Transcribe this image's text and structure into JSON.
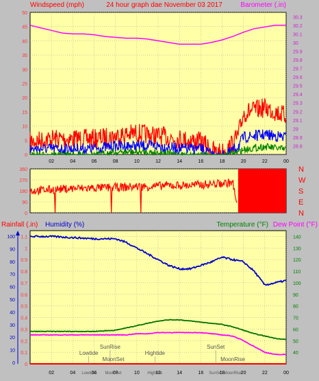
{
  "chart_data": [
    {
      "type": "line",
      "title": "24 hour graph dae   November 03 2017",
      "ylabel_left": "Windspeed (mph)",
      "ylabel_right": "Barometer (.in)",
      "x_ticks": [
        "02",
        "04",
        "06",
        "08",
        "10",
        "12",
        "14",
        "16",
        "18",
        "20",
        "22",
        "00"
      ],
      "xlim": [
        0,
        24
      ],
      "ylim_left": [
        0,
        50
      ],
      "ylim_right": [
        28.7,
        30.35
      ],
      "left_ticks": [
        "0",
        "5",
        "10",
        "15",
        "20",
        "25",
        "30",
        "35",
        "40",
        "45",
        "50"
      ],
      "right_ticks": [
        "28.8",
        "28.9",
        "29",
        "29.1",
        "29.2",
        "29.3",
        "29.4",
        "29.5",
        "29.6",
        "29.7",
        "29.8",
        "29.9",
        "30",
        "30.1",
        "30.2",
        "30.3"
      ],
      "barometer": {
        "x": [
          0,
          1,
          2,
          3,
          4,
          5,
          6,
          7,
          8,
          9,
          10,
          11,
          12,
          13,
          14,
          15,
          16,
          17,
          18,
          19,
          20,
          21,
          22,
          23,
          24
        ],
        "y": [
          30.2,
          30.17,
          30.14,
          30.11,
          30.1,
          30.1,
          30.09,
          30.07,
          30.06,
          30.05,
          30.05,
          30.04,
          30.02,
          30.0,
          29.98,
          29.98,
          29.98,
          30.0,
          30.03,
          30.07,
          30.12,
          30.16,
          30.18,
          30.2,
          30.2
        ]
      },
      "wind_gust_max": {
        "x": [
          0,
          2,
          4,
          6,
          8,
          10,
          12,
          14,
          16,
          17.5,
          18.5,
          19.5,
          20,
          22,
          24
        ],
        "y": [
          8,
          9,
          9,
          9,
          10,
          11,
          10,
          9,
          8,
          4,
          5,
          10,
          18,
          20,
          17
        ]
      },
      "wind_avg": {
        "x": [
          0,
          2,
          4,
          6,
          8,
          10,
          12,
          14,
          16,
          17.5,
          18.5,
          19.5,
          20,
          22,
          24
        ],
        "y": [
          4,
          4,
          4,
          4,
          5,
          5,
          5,
          4,
          4,
          1,
          2,
          5,
          8,
          9,
          8
        ]
      },
      "wind_min": {
        "x": [
          0,
          2,
          4,
          6,
          8,
          10,
          12,
          14,
          16,
          17.5,
          18.5,
          19.5,
          20,
          22,
          24
        ],
        "y": [
          1,
          1,
          1,
          1,
          2,
          2,
          2,
          1,
          1,
          0,
          1,
          2,
          3,
          4,
          3
        ]
      }
    },
    {
      "type": "line",
      "ylabel_right_letters": [
        "N",
        "W",
        "S",
        "E",
        "N"
      ],
      "left_ticks": [
        "0",
        "90",
        "180",
        "270",
        "360"
      ],
      "ylim": [
        0,
        360
      ],
      "x_ticks": [
        "02",
        "04",
        "06",
        "08",
        "10",
        "12",
        "14",
        "16",
        "18",
        "20",
        "22",
        "00"
      ],
      "xlim": [
        0,
        24
      ],
      "direction": {
        "x": [
          0,
          1,
          2,
          3,
          4,
          5,
          6,
          7,
          8,
          9,
          10,
          11,
          12,
          13,
          14,
          15,
          16,
          17,
          18,
          19,
          19.5,
          24
        ],
        "y": [
          180,
          185,
          190,
          195,
          200,
          200,
          205,
          205,
          210,
          210,
          215,
          215,
          220,
          225,
          225,
          225,
          230,
          235,
          240,
          250,
          0,
          360
        ]
      }
    },
    {
      "type": "line",
      "labels": {
        "rainfall": "Rainfall (.in)",
        "humidity": "Humidity (%)",
        "temperature": "Temperature (°F)",
        "dewpoint": "Dew Point (°F)"
      },
      "left_ticks": [
        "0",
        "0.1",
        "0.2",
        "0.3",
        "0.4",
        "0.5",
        "0.6",
        "0.7",
        "0.8",
        "0.9",
        "1",
        "1.1"
      ],
      "far_left_ticks": [
        "0",
        "10",
        "20",
        "30",
        "40",
        "50",
        "60",
        "70",
        "80",
        "90",
        "100"
      ],
      "right_ticks": [
        "40",
        "50",
        "60",
        "70",
        "80",
        "90",
        "100",
        "110",
        "120",
        "130",
        "140"
      ],
      "x_ticks": [
        "02",
        "04",
        "06",
        "08",
        "10",
        "12",
        "14",
        "16",
        "18",
        "20",
        "22",
        "00"
      ],
      "xlim": [
        0,
        24
      ],
      "ylim_rain": [
        0,
        1.15
      ],
      "ylim_temp": [
        30,
        145
      ],
      "humidity": {
        "x": [
          0,
          2,
          4,
          6,
          8,
          9,
          10,
          11,
          12,
          13,
          14,
          15,
          16,
          17,
          18,
          19,
          20,
          21,
          22,
          23,
          24
        ],
        "y": [
          1.1,
          1.1,
          1.09,
          1.08,
          1.08,
          1.05,
          1.0,
          0.95,
          0.9,
          0.85,
          0.82,
          0.82,
          0.85,
          0.88,
          0.92,
          0.9,
          0.88,
          0.8,
          0.68,
          0.7,
          0.72
        ]
      },
      "temperature": {
        "x": [
          0,
          2,
          4,
          6,
          8,
          9,
          10,
          11,
          12,
          13,
          14,
          15,
          16,
          17,
          18,
          19,
          20,
          21,
          22,
          23,
          24
        ],
        "y": [
          58,
          58,
          58,
          58,
          59,
          61,
          63,
          65,
          67,
          68,
          68,
          67,
          66,
          65,
          64,
          62,
          59,
          56,
          54,
          52,
          51
        ]
      },
      "dewpoint": {
        "x": [
          0,
          2,
          4,
          6,
          8,
          9,
          10,
          11,
          12,
          13,
          14,
          15,
          16,
          17,
          18,
          19,
          20,
          21,
          22,
          23,
          24
        ],
        "y": [
          55,
          55,
          55,
          55,
          55,
          55,
          56,
          56,
          57,
          57,
          57,
          57,
          57,
          56,
          55,
          54,
          50,
          45,
          40,
          38,
          38
        ]
      },
      "rainfall": {
        "x": [
          0,
          24
        ],
        "y": [
          0,
          0
        ]
      },
      "markers": [
        {
          "label": "SunRise",
          "x": 7.5,
          "level": 2
        },
        {
          "label": "Lowtide",
          "x": 5.5,
          "level": 1
        },
        {
          "label": "MoonSet",
          "x": 7.8,
          "level": 0
        },
        {
          "label": "Hightide",
          "x": 11.7,
          "level": 1
        },
        {
          "label": "SunSet",
          "x": 17.4,
          "level": 2
        },
        {
          "label": "MoonRise",
          "x": 19.0,
          "level": 0
        }
      ],
      "x_bottom_labels": [
        {
          "label": "Lowtide",
          "x": 5.5
        },
        {
          "label": "MoonSet",
          "x": 7.8
        },
        {
          "label": "Hightide",
          "x": 11.7
        },
        {
          "label": "SunSet",
          "x": 17.4
        },
        {
          "label": "MoonRise",
          "x": 19.0
        }
      ]
    }
  ]
}
